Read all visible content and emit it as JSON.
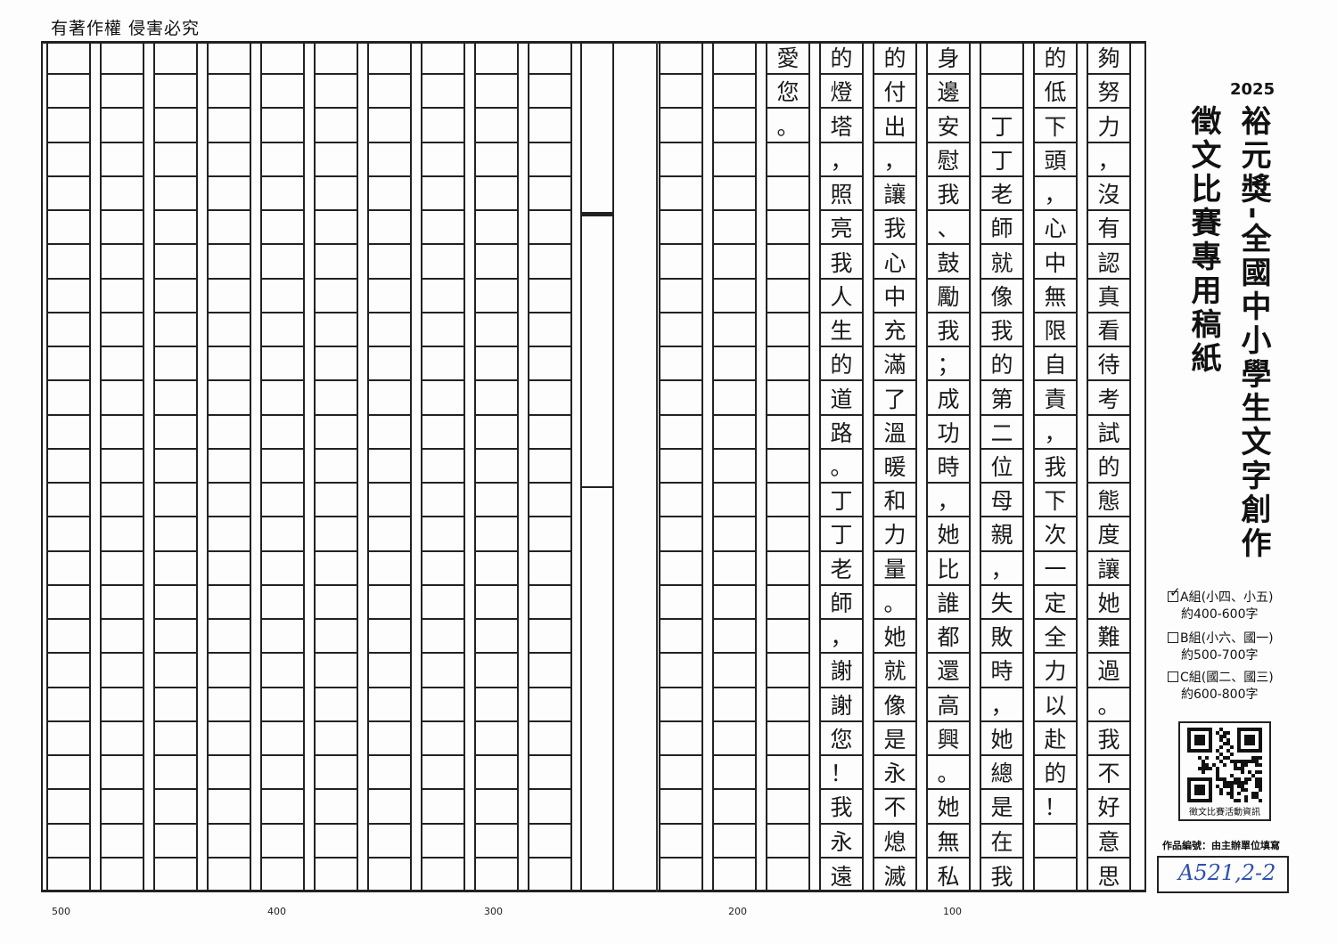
{
  "header": {
    "copyright": "有著作權 侵害必究"
  },
  "title": {
    "year": "2025",
    "line1": "裕元獎-全國中小學生文字創作",
    "line2": "徵文比賽專用稿紙"
  },
  "groups": [
    {
      "label": "A組(小四、小五)",
      "range": "約400-600字",
      "checked": true
    },
    {
      "label": "B組(小六、國一)",
      "range": "約500-700字",
      "checked": false
    },
    {
      "label": "C組(國二、國三)",
      "range": "約600-800字",
      "checked": false
    }
  ],
  "check_mark": "✓",
  "qr": {
    "caption": "徵文比賽活動資訊"
  },
  "entry": {
    "label": "作品編號：由主辦單位填寫",
    "value": "A521,2-2",
    "ink_color": "#2a4fb5"
  },
  "grid": {
    "rows": 25,
    "columns": [
      [
        "夠",
        "努",
        "力",
        "，",
        "沒",
        "有",
        "認",
        "真",
        "看",
        "待",
        "考",
        "試",
        "的",
        "態",
        "度",
        "讓",
        "她",
        "難",
        "過",
        "。",
        "我",
        "不",
        "好",
        "意",
        "思"
      ],
      [
        "的",
        "低",
        "下",
        "頭",
        "，",
        "心",
        "中",
        "無",
        "限",
        "自",
        "責",
        "，",
        "我",
        "下",
        "次",
        "一",
        "定",
        "全",
        "力",
        "以",
        "赴",
        "的",
        "！",
        "",
        ""
      ],
      [
        "",
        "",
        "丁",
        "丁",
        "老",
        "師",
        "就",
        "像",
        "我",
        "的",
        "第",
        "二",
        "位",
        "母",
        "親",
        "，",
        "失",
        "敗",
        "時",
        "，",
        "她",
        "總",
        "是",
        "在",
        "我"
      ],
      [
        "身",
        "邊",
        "安",
        "慰",
        "我",
        "、",
        "鼓",
        "勵",
        "我",
        "；",
        "成",
        "功",
        "時",
        "，",
        "她",
        "比",
        "誰",
        "都",
        "還",
        "高",
        "興",
        "。",
        "她",
        "無",
        "私"
      ],
      [
        "的",
        "付",
        "出",
        "，",
        "讓",
        "我",
        "心",
        "中",
        "充",
        "滿",
        "了",
        "溫",
        "暖",
        "和",
        "力",
        "量",
        "。",
        "她",
        "就",
        "像",
        "是",
        "永",
        "不",
        "熄",
        "滅"
      ],
      [
        "的",
        "燈",
        "塔",
        "，",
        "照",
        "亮",
        "我",
        "人",
        "生",
        "的",
        "道",
        "路",
        "。",
        "丁",
        "丁",
        "老",
        "師",
        "，",
        "謝",
        "謝",
        "您",
        "！",
        "我",
        "永",
        "遠"
      ],
      [
        "愛",
        "您",
        "。",
        "",
        "",
        "",
        "",
        "",
        "",
        "",
        "",
        "",
        "",
        "",
        "",
        "",
        "",
        "",
        "",
        "",
        "",
        "",
        "",
        "",
        ""
      ]
    ]
  },
  "scale_numbers": [
    "500",
    "400",
    "300",
    "200",
    "100"
  ]
}
